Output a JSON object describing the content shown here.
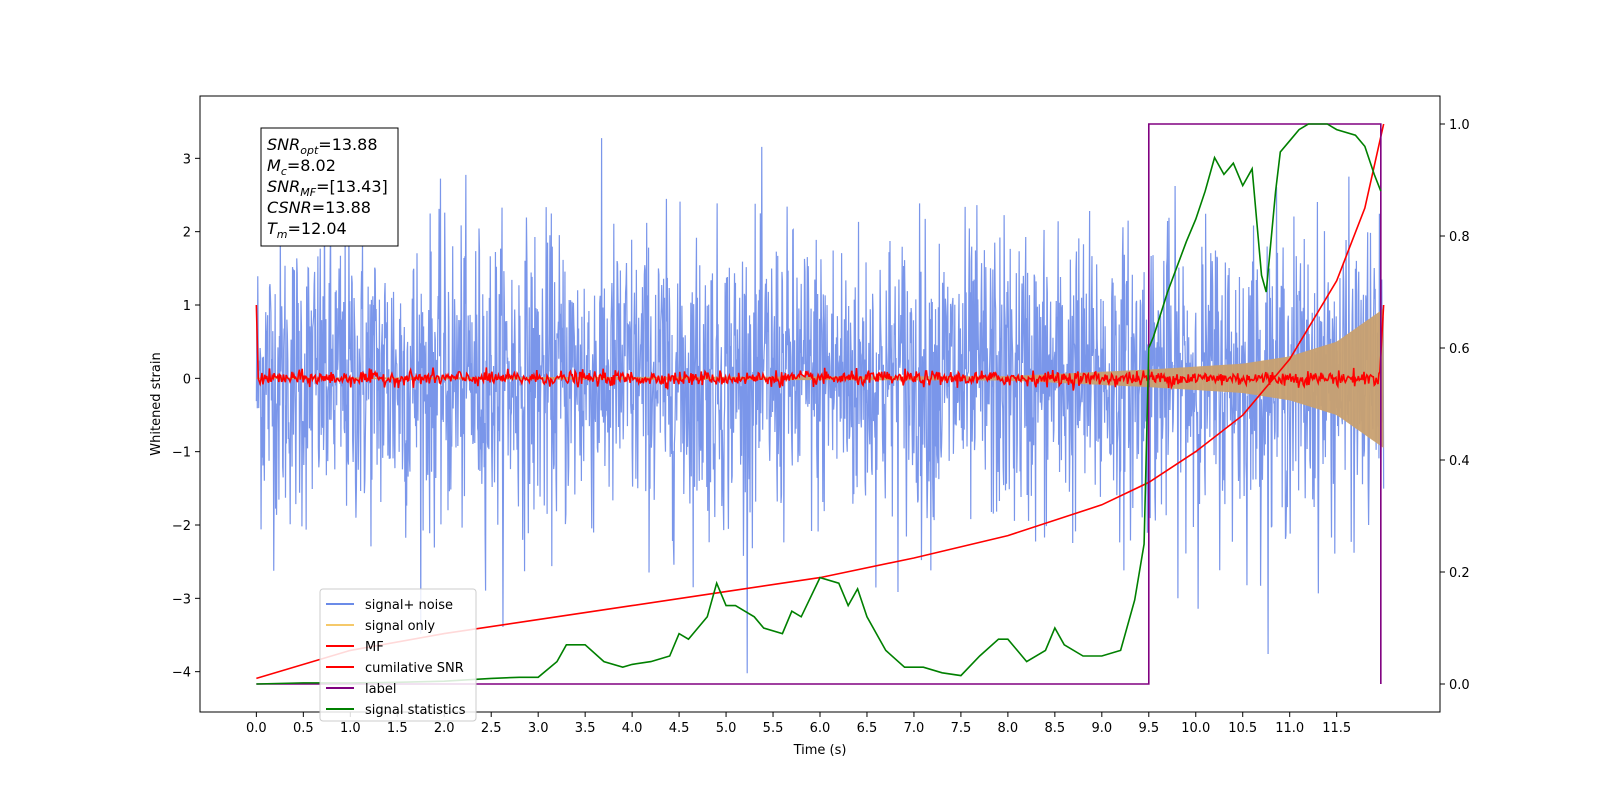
{
  "chart_data": {
    "type": "line",
    "xlabel": "Time (s)",
    "ylabel": "Whitened strain",
    "xlim": [
      -0.6,
      12.6
    ],
    "ylim": [
      -4.55,
      3.85
    ],
    "ylim_right": [
      -0.05,
      1.05
    ],
    "x_ticks": [
      0.0,
      0.5,
      1.0,
      1.5,
      2.0,
      2.5,
      3.0,
      3.5,
      4.0,
      4.5,
      5.0,
      5.5,
      6.0,
      6.5,
      7.0,
      7.5,
      8.0,
      8.5,
      9.0,
      9.5,
      10.0,
      10.5,
      11.0,
      11.5
    ],
    "x_tick_labels": [
      "0.0",
      "0.5",
      "1.0",
      "1.5",
      "2.0",
      "2.5",
      "3.0",
      "3.5",
      "4.0",
      "4.5",
      "5.0",
      "5.5",
      "6.0",
      "6.5",
      "7.0",
      "7.5",
      "8.0",
      "8.5",
      "9.0",
      "9.5",
      "10.0",
      "10.5",
      "11.0",
      "11.5"
    ],
    "y_ticks": [
      -4,
      -3,
      -2,
      -1,
      0,
      1,
      2,
      3
    ],
    "y_tick_labels": [
      "−4",
      "−3",
      "−2",
      "−1",
      "0",
      "1",
      "2",
      "3"
    ],
    "y_ticks_right": [
      0.0,
      0.2,
      0.4,
      0.6,
      0.8,
      1.0
    ],
    "y_tick_labels_right": [
      "0.0",
      "0.2",
      "0.4",
      "0.6",
      "0.8",
      "1.0"
    ],
    "grid": false,
    "legend_position": "lower-left",
    "legend": [
      {
        "label": "signal+ noise",
        "color": "#6b8be8"
      },
      {
        "label": "signal only",
        "color": "#f5c96a"
      },
      {
        "label": "MF",
        "color": "#ff0000"
      },
      {
        "label": "cumilative SNR",
        "color": "#ff0000"
      },
      {
        "label": "label",
        "color": "#800080"
      },
      {
        "label": "signal statistics",
        "color": "#008000"
      }
    ],
    "annotations": [
      {
        "var": "SNR",
        "sub": "opt",
        "value": "=13.88"
      },
      {
        "var": "M",
        "sub": "c",
        "value": "=8.02"
      },
      {
        "var": "SNR",
        "sub": "MF",
        "value": "=[13.43]"
      },
      {
        "var": "CSNR",
        "sub": "",
        "value": "=13.88"
      },
      {
        "var": "T",
        "sub": "m",
        "value": "=12.04"
      }
    ],
    "series": [
      {
        "name": "signal+ noise",
        "axis": "left",
        "color": "#6b8be8",
        "description_range": [
          0.0,
          12.0
        ],
        "amplitude_typical": 1.0,
        "amplitude_extreme": [
          -4.2,
          3.5
        ]
      },
      {
        "name": "signal only",
        "axis": "left",
        "color": "#c8a070",
        "envelope": {
          "x": [
            0.0,
            8.0,
            9.5,
            10.5,
            11.0,
            11.5,
            12.0
          ],
          "amp": [
            0.01,
            0.03,
            0.12,
            0.2,
            0.3,
            0.5,
            0.95
          ]
        }
      },
      {
        "name": "MF",
        "axis": "left",
        "color": "#ff0000",
        "start_value": 1.0,
        "end_value": 1.0,
        "baseline": 0.0,
        "jitter": 0.1
      },
      {
        "name": "cumilative SNR",
        "axis": "right",
        "color": "#ff0000",
        "x": [
          0.0,
          1.0,
          2.0,
          3.0,
          4.0,
          5.0,
          6.0,
          7.0,
          8.0,
          9.0,
          9.5,
          10.0,
          10.5,
          11.0,
          11.5,
          11.8,
          12.0
        ],
        "y": [
          0.01,
          0.06,
          0.09,
          0.115,
          0.14,
          0.165,
          0.19,
          0.225,
          0.265,
          0.32,
          0.36,
          0.415,
          0.48,
          0.58,
          0.72,
          0.85,
          1.0
        ]
      },
      {
        "name": "label",
        "axis": "right",
        "color": "#800080",
        "x": [
          0.0,
          9.5,
          9.5,
          11.97,
          11.97
        ],
        "y": [
          0.0,
          0.0,
          1.0,
          1.0,
          0.0
        ]
      },
      {
        "name": "signal statistics",
        "axis": "right",
        "color": "#008000",
        "x": [
          0.0,
          0.5,
          1.0,
          1.5,
          2.0,
          2.5,
          2.8,
          3.0,
          3.2,
          3.3,
          3.5,
          3.7,
          3.9,
          4.0,
          4.2,
          4.4,
          4.5,
          4.6,
          4.8,
          4.9,
          5.0,
          5.1,
          5.2,
          5.3,
          5.4,
          5.6,
          5.7,
          5.8,
          6.0,
          6.2,
          6.3,
          6.4,
          6.5,
          6.7,
          6.9,
          7.1,
          7.3,
          7.5,
          7.7,
          7.9,
          8.0,
          8.1,
          8.2,
          8.4,
          8.5,
          8.6,
          8.8,
          9.0,
          9.2,
          9.35,
          9.45,
          9.5,
          9.55,
          9.7,
          9.9,
          10.0,
          10.1,
          10.2,
          10.3,
          10.4,
          10.5,
          10.6,
          10.7,
          10.75,
          10.85,
          10.9,
          11.0,
          11.1,
          11.2,
          11.4,
          11.5,
          11.7,
          11.8,
          11.9,
          11.97
        ],
        "y": [
          0.0,
          0.002,
          0.002,
          0.003,
          0.005,
          0.01,
          0.012,
          0.012,
          0.04,
          0.07,
          0.07,
          0.04,
          0.03,
          0.035,
          0.04,
          0.05,
          0.09,
          0.08,
          0.12,
          0.18,
          0.14,
          0.14,
          0.13,
          0.12,
          0.1,
          0.09,
          0.13,
          0.12,
          0.19,
          0.18,
          0.14,
          0.17,
          0.12,
          0.06,
          0.03,
          0.03,
          0.02,
          0.015,
          0.05,
          0.08,
          0.08,
          0.06,
          0.04,
          0.06,
          0.1,
          0.07,
          0.05,
          0.05,
          0.06,
          0.15,
          0.25,
          0.6,
          0.62,
          0.7,
          0.79,
          0.83,
          0.88,
          0.94,
          0.91,
          0.93,
          0.89,
          0.92,
          0.73,
          0.7,
          0.88,
          0.95,
          0.97,
          0.99,
          1.0,
          1.0,
          0.99,
          0.98,
          0.96,
          0.91,
          0.88
        ]
      }
    ]
  }
}
